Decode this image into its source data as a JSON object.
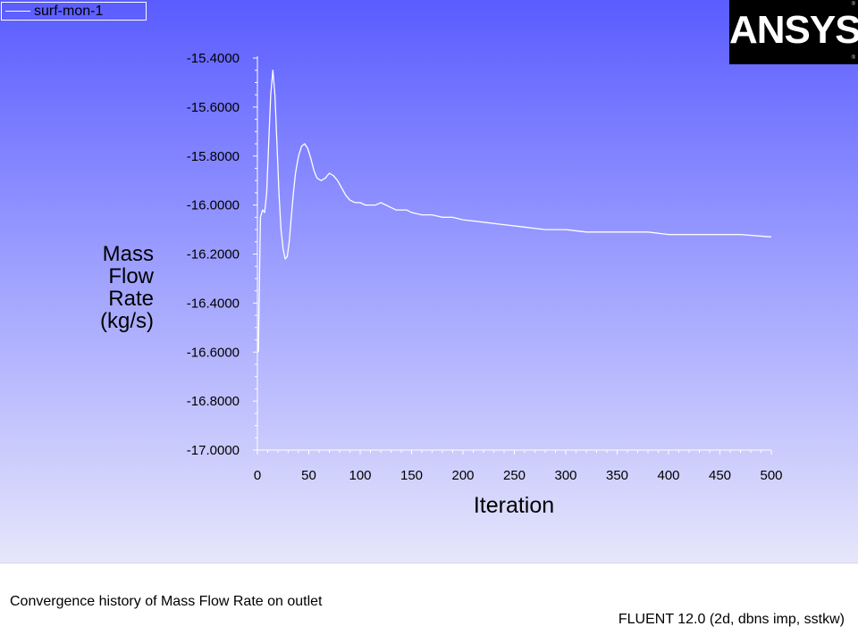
{
  "legend": {
    "label": "surf-mon-1",
    "line_color": "#ffffff"
  },
  "logo": {
    "text": "ANSYS",
    "tm_top": "®",
    "tm_bottom": "®"
  },
  "footer": {
    "title": "Convergence history of Mass Flow Rate on outlet",
    "version": "FLUENT 12.0 (2d, dbns imp, sstkw)"
  },
  "chart_data": {
    "type": "line",
    "title": "",
    "xlabel": "Iteration",
    "ylabel": [
      "Mass",
      "Flow",
      "Rate",
      "(kg/s)"
    ],
    "xlim": [
      0,
      500
    ],
    "ylim": [
      -17.0,
      -15.4
    ],
    "x_ticks": [
      0,
      50,
      100,
      150,
      200,
      250,
      300,
      350,
      400,
      450,
      500
    ],
    "y_ticks": [
      -15.4,
      -15.6,
      -15.8,
      -16.0,
      -16.2,
      -16.4,
      -16.6,
      -16.8,
      -17.0
    ],
    "y_tick_labels": [
      "-15.4000",
      "-15.6000",
      "-15.8000",
      "-16.0000",
      "-16.2000",
      "-16.4000",
      "-16.6000",
      "-16.8000",
      "-17.0000"
    ],
    "grid": false,
    "legend_position": "top-left",
    "colors": {
      "series": "#ffffff",
      "axis": "#ffffff"
    },
    "series": [
      {
        "name": "surf-mon-1",
        "x": [
          1,
          2,
          3,
          5,
          7,
          9,
          11,
          13,
          15,
          17,
          19,
          21,
          23,
          25,
          27,
          29,
          31,
          33,
          35,
          37,
          40,
          43,
          46,
          49,
          52,
          55,
          58,
          62,
          66,
          70,
          74,
          78,
          82,
          86,
          90,
          95,
          100,
          105,
          110,
          115,
          120,
          125,
          130,
          135,
          140,
          145,
          150,
          160,
          170,
          180,
          190,
          200,
          220,
          240,
          260,
          280,
          300,
          320,
          350,
          380,
          400,
          430,
          450,
          470,
          500
        ],
        "y": [
          -16.6,
          -16.3,
          -16.05,
          -16.02,
          -16.03,
          -15.95,
          -15.75,
          -15.55,
          -15.45,
          -15.55,
          -15.75,
          -15.95,
          -16.1,
          -16.18,
          -16.22,
          -16.21,
          -16.15,
          -16.05,
          -15.95,
          -15.87,
          -15.8,
          -15.76,
          -15.75,
          -15.77,
          -15.81,
          -15.86,
          -15.89,
          -15.9,
          -15.89,
          -15.87,
          -15.88,
          -15.9,
          -15.93,
          -15.96,
          -15.98,
          -15.99,
          -15.99,
          -16.0,
          -16.0,
          -16.0,
          -15.99,
          -16.0,
          -16.01,
          -16.02,
          -16.02,
          -16.02,
          -16.03,
          -16.04,
          -16.04,
          -16.05,
          -16.05,
          -16.06,
          -16.07,
          -16.08,
          -16.09,
          -16.1,
          -16.1,
          -16.11,
          -16.11,
          -16.11,
          -16.12,
          -16.12,
          -16.12,
          -16.12,
          -16.13
        ]
      }
    ]
  }
}
